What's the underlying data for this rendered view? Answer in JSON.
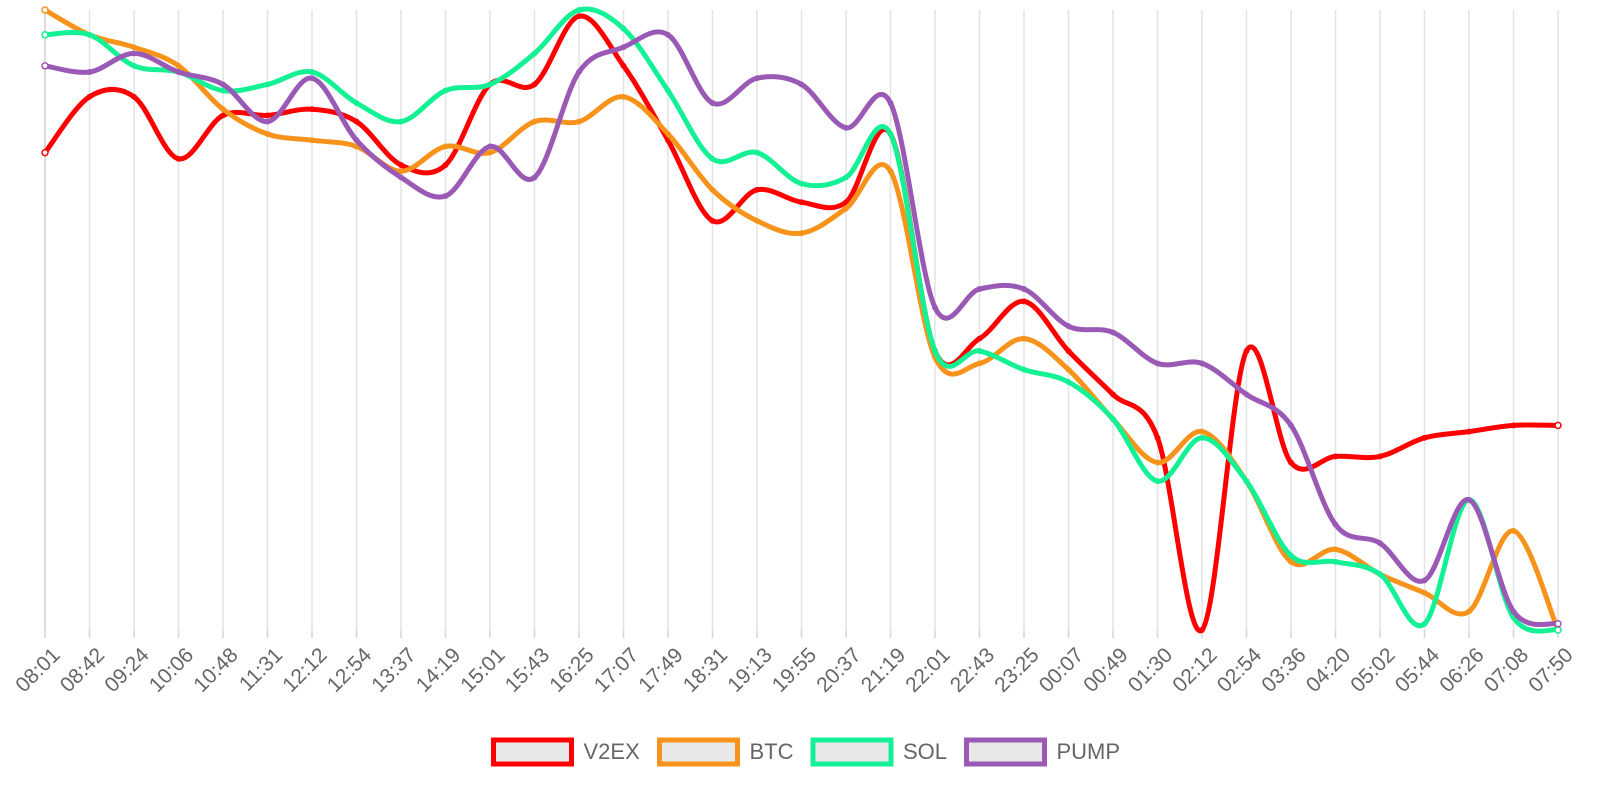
{
  "chart_data": {
    "type": "line",
    "grid": true,
    "legend_position": "bottom",
    "x": [
      "08:01",
      "08:42",
      "09:24",
      "10:06",
      "10:48",
      "11:31",
      "12:12",
      "12:54",
      "13:37",
      "14:19",
      "15:01",
      "15:43",
      "16:25",
      "17:07",
      "17:49",
      "18:31",
      "19:13",
      "19:55",
      "20:37",
      "21:19",
      "22:01",
      "22:43",
      "23:25",
      "00:07",
      "00:49",
      "01:30",
      "02:12",
      "02:54",
      "03:36",
      "04:20",
      "05:02",
      "05:44",
      "06:26",
      "07:08",
      "07:50"
    ],
    "ylim": [
      0,
      100
    ],
    "series": [
      {
        "name": "V2EX",
        "color": "#ff0000",
        "values": [
          77,
          86,
          86,
          76,
          83,
          83,
          84,
          82,
          75,
          75,
          88,
          88,
          99,
          91,
          79,
          66,
          71,
          69,
          69,
          80,
          45,
          47,
          53,
          45,
          38,
          31,
          0,
          45,
          27,
          28,
          28,
          31,
          32,
          33,
          33
        ]
      },
      {
        "name": "BTC",
        "color": "#f7931a",
        "values": [
          100,
          96,
          94,
          91,
          84,
          80,
          79,
          78,
          74,
          78,
          77,
          82,
          82,
          86,
          80,
          71,
          66,
          64,
          68,
          74,
          44,
          43,
          47,
          42,
          34,
          27,
          32,
          24,
          11,
          13,
          9,
          6,
          3,
          16,
          0
        ]
      },
      {
        "name": "SOL",
        "color": "#14f195",
        "values": [
          96,
          96,
          91,
          90,
          87,
          88,
          90,
          85,
          82,
          87,
          88,
          93,
          100,
          97,
          87,
          76,
          77,
          72,
          73,
          80,
          45,
          45,
          42,
          40,
          34,
          24,
          31,
          24,
          12,
          11,
          9,
          1,
          21,
          2,
          0
        ]
      },
      {
        "name": "PUMP",
        "color": "#9b59b6",
        "values": [
          91,
          90,
          93,
          90,
          88,
          82,
          89,
          79,
          73,
          70,
          78,
          73,
          90,
          94,
          96,
          85,
          89,
          88,
          81,
          85,
          52,
          55,
          55,
          49,
          48,
          43,
          43,
          38,
          33,
          17,
          14,
          8,
          21,
          3,
          1
        ]
      }
    ]
  }
}
